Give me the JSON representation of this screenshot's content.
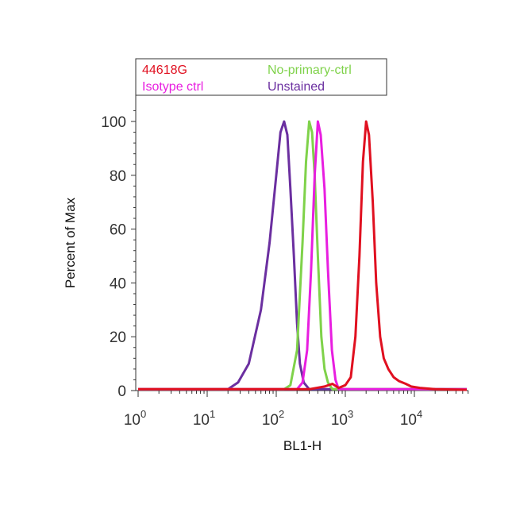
{
  "chart_data": {
    "type": "line",
    "title": "",
    "xlabel": "BL1-H",
    "ylabel": "Percent of Max",
    "x_scale": "log",
    "xlim": [
      1,
      60000
    ],
    "ylim": [
      0,
      110
    ],
    "x_ticks": [
      {
        "value": 1,
        "base": "10",
        "exp": "0"
      },
      {
        "value": 10,
        "base": "10",
        "exp": "1"
      },
      {
        "value": 100,
        "base": "10",
        "exp": "2"
      },
      {
        "value": 1000,
        "base": "10",
        "exp": "3"
      },
      {
        "value": 10000,
        "base": "10",
        "exp": "4"
      }
    ],
    "y_ticks": [
      "0",
      "20",
      "40",
      "60",
      "80",
      "100"
    ],
    "grid": false,
    "legend_position": "top",
    "series": [
      {
        "name": "Unstained",
        "color": "#6b2fa0",
        "x": [
          1,
          20,
          28,
          40,
          60,
          80,
          100,
          115,
          130,
          145,
          160,
          180,
          200,
          220,
          250,
          300,
          60000
        ],
        "y": [
          0.5,
          0.5,
          3,
          10,
          30,
          55,
          80,
          96,
          100,
          95,
          75,
          50,
          25,
          10,
          3,
          0.5,
          0.5
        ]
      },
      {
        "name": "No-primary-ctrl",
        "color": "#7fd24a",
        "x": [
          1,
          130,
          160,
          200,
          240,
          270,
          300,
          330,
          360,
          400,
          450,
          500,
          560,
          650,
          60000
        ],
        "y": [
          0.5,
          0.5,
          2,
          15,
          55,
          85,
          100,
          96,
          80,
          50,
          20,
          8,
          3,
          0.5,
          0.5
        ]
      },
      {
        "name": "Isotype ctrl",
        "color": "#e81ee0",
        "x": [
          1,
          200,
          240,
          280,
          320,
          360,
          400,
          440,
          500,
          560,
          640,
          720,
          800,
          60000
        ],
        "y": [
          0.5,
          0.5,
          3,
          15,
          45,
          80,
          100,
          95,
          75,
          45,
          15,
          4,
          0.5,
          0.5
        ]
      },
      {
        "name": "44618G",
        "color": "#e01020",
        "x": [
          1,
          300,
          500,
          650,
          800,
          1000,
          1200,
          1400,
          1600,
          1800,
          2000,
          2200,
          2500,
          2800,
          3200,
          3600,
          4200,
          5000,
          6000,
          7500,
          9000,
          12000,
          20000,
          60000
        ],
        "y": [
          0.5,
          0.5,
          1.5,
          2.5,
          1,
          2,
          5,
          20,
          50,
          85,
          100,
          95,
          70,
          40,
          20,
          12,
          8,
          5,
          3.5,
          2.5,
          1.5,
          1,
          0.5,
          0.3
        ]
      }
    ],
    "legend": [
      {
        "label": "44618G",
        "color": "#e01020"
      },
      {
        "label": "No-primary-ctrl",
        "color": "#7fd24a"
      },
      {
        "label": "Isotype ctrl",
        "color": "#e81ee0"
      },
      {
        "label": "Unstained",
        "color": "#6b2fa0"
      }
    ]
  }
}
